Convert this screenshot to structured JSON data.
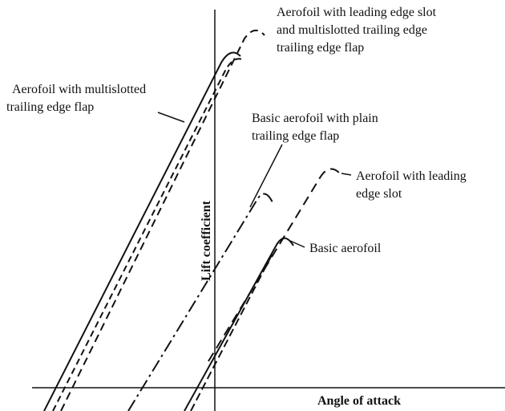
{
  "labels": {
    "slot_and_multislot": [
      "Aerofoil with leading edge slot",
      "and multislotted trailing edge",
      "trailing edge flap"
    ],
    "multislot": [
      "Aerofoil with multislotted",
      "trailing edge flap"
    ],
    "plain_flap": [
      "Basic aerofoil with plain",
      "trailing edge flap"
    ],
    "slot": [
      "Aerofoil with leading",
      "edge slot"
    ],
    "basic": [
      "Basic aerofoil"
    ]
  },
  "axes": {
    "y_label": "Lift coefficient",
    "x_label": "Angle of attack"
  }
}
